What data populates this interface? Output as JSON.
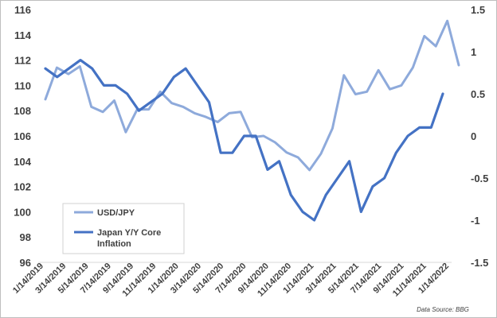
{
  "chart_data": {
    "type": "line",
    "title": "",
    "xlabel": "",
    "ylabel_left": "",
    "ylabel_right": "",
    "ylim_left": [
      96,
      116
    ],
    "ylim_right": [
      -1.5,
      1.5
    ],
    "yticks_left": [
      "96",
      "98",
      "100",
      "102",
      "104",
      "106",
      "108",
      "110",
      "112",
      "114",
      "116"
    ],
    "yticks_right": [
      "-1.5",
      "-1",
      "-0.5",
      "0",
      "0.5",
      "1",
      "1.5"
    ],
    "xtick_labels": [
      "1/14/2019",
      "3/14/2019",
      "5/14/2019",
      "7/14/2019",
      "9/14/2019",
      "11/14/2019",
      "1/14/2020",
      "3/14/2020",
      "5/14/2020",
      "7/14/2020",
      "9/14/2020",
      "11/14/2020",
      "1/14/2021",
      "3/14/2021",
      "5/14/2021",
      "7/14/2021",
      "9/14/2021",
      "11/14/2021",
      "1/14/2022"
    ],
    "series": [
      {
        "name": "USD/JPY",
        "axis": "left",
        "color": "#8eaadb",
        "values": [
          108.9,
          111.4,
          110.9,
          111.5,
          108.3,
          107.9,
          108.8,
          106.3,
          108.1,
          108.1,
          109.5,
          108.6,
          108.3,
          107.8,
          107.5,
          107.1,
          107.8,
          107.9,
          105.9,
          106.0,
          105.5,
          104.7,
          104.3,
          103.3,
          104.6,
          106.6,
          110.8,
          109.3,
          109.5,
          111.2,
          109.7,
          110.0,
          111.4,
          113.9,
          113.1,
          115.1,
          111.6
        ]
      },
      {
        "name": "Japan Y/Y Core Inflation",
        "axis": "right",
        "color": "#4472c4",
        "values": [
          0.8,
          0.7,
          0.8,
          0.9,
          0.8,
          0.6,
          0.6,
          0.5,
          0.3,
          0.4,
          0.5,
          0.7,
          0.8,
          0.6,
          0.4,
          -0.2,
          -0.2,
          0.0,
          0.0,
          -0.4,
          -0.3,
          -0.7,
          -0.9,
          -1.0,
          -0.7,
          -0.5,
          -0.3,
          -0.9,
          -0.6,
          -0.5,
          -0.2,
          0.0,
          0.1,
          0.1,
          0.5
        ]
      }
    ],
    "legend": {
      "position": "bottom-left",
      "entries": [
        "USD/JPY",
        "Japan Y/Y Core",
        "Inflation"
      ]
    },
    "source": "Data Source: BBG",
    "grid": false
  }
}
